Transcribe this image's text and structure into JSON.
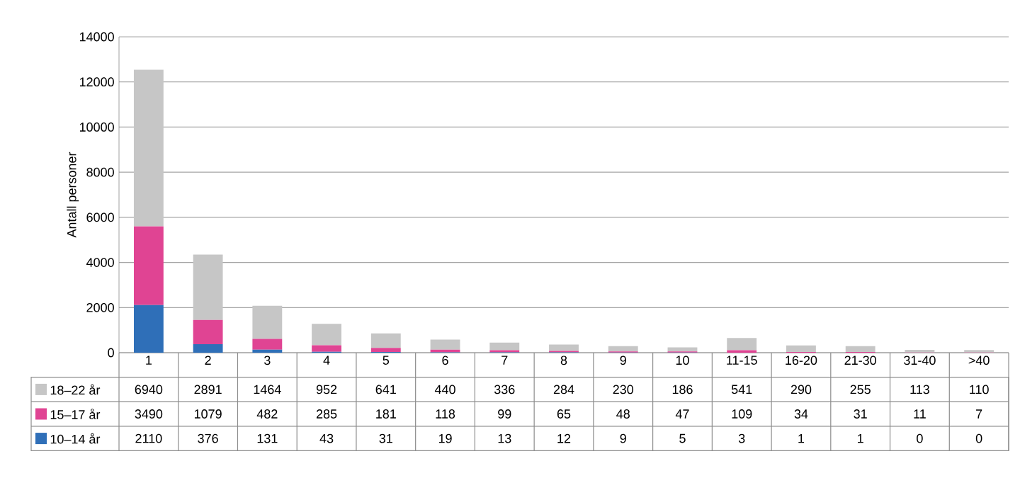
{
  "chart_data": {
    "type": "bar",
    "stacked": true,
    "ylabel": "Antall personer",
    "categories": [
      "1",
      "2",
      "3",
      "4",
      "5",
      "6",
      "7",
      "8",
      "9",
      "10",
      "11-15",
      "16-20",
      "21-30",
      "31-40",
      ">40"
    ],
    "series": [
      {
        "name": "10–14 år",
        "color": "#2f6fb8",
        "values": [
          2110,
          376,
          131,
          43,
          31,
          19,
          13,
          12,
          9,
          5,
          3,
          1,
          1,
          0,
          0
        ]
      },
      {
        "name": "15–17 år",
        "color": "#e04493",
        "values": [
          3490,
          1079,
          482,
          285,
          181,
          118,
          99,
          65,
          48,
          47,
          109,
          34,
          31,
          11,
          7
        ]
      },
      {
        "name": "18–22 år",
        "color": "#c6c6c6",
        "values": [
          6940,
          2891,
          1464,
          952,
          641,
          440,
          336,
          284,
          230,
          186,
          541,
          290,
          255,
          113,
          110
        ]
      }
    ],
    "ylim": [
      0,
      14000
    ],
    "yticks": [
      0,
      2000,
      4000,
      6000,
      8000,
      10000,
      12000,
      14000
    ],
    "grid": "y",
    "legend": "bottom",
    "data_labels": true
  }
}
